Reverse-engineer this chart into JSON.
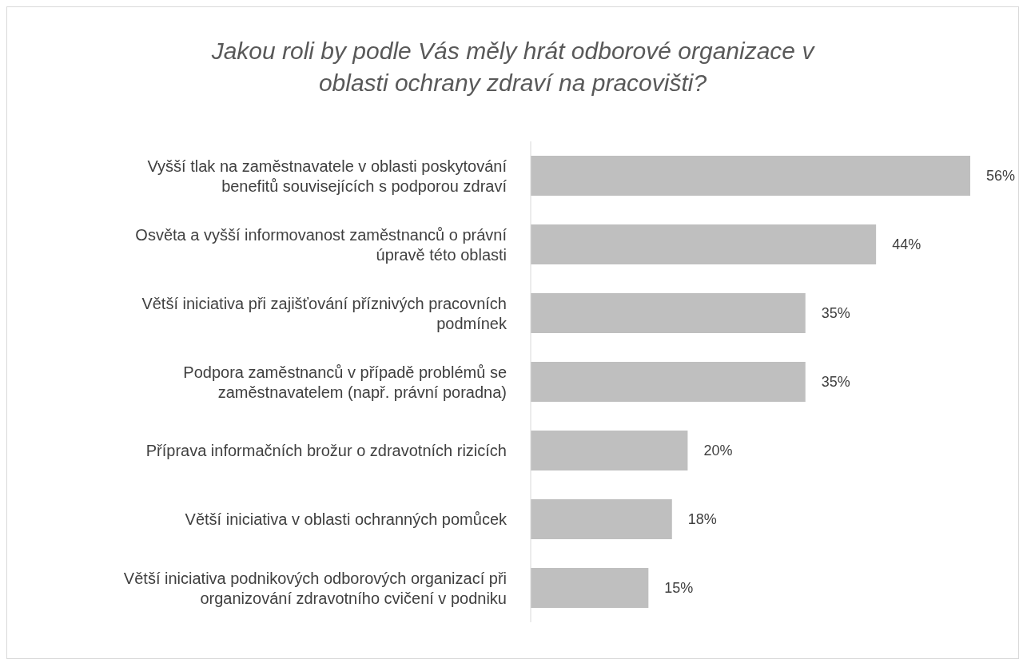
{
  "chart_data": {
    "type": "bar",
    "orientation": "horizontal",
    "title": "Jakou roli by podle Vás měly hrát odborové organizace v oblasti ochrany zdraví na pracovišti?",
    "categories": [
      "Vyšší tlak na zaměstnavatele v oblasti poskytování benefitů souvisejících s podporou zdraví",
      "Osvěta a vyšší informovanost zaměstnanců o právní úpravě této oblasti",
      "Větší iniciativa při zajišťování příznivých pracovních podmínek",
      "Podpora zaměstnanců v případě problémů se zaměstnavatelem (např. právní poradna)",
      "Příprava informačních brožur o zdravotních rizicích",
      "Větší iniciativa v oblasti ochranných pomůcek",
      "Větší iniciativa podnikových odborových organizací při organizování zdravotního cvičení v podniku"
    ],
    "values": [
      56,
      44,
      35,
      35,
      20,
      18,
      15
    ],
    "value_labels": [
      "56%",
      "44%",
      "35%",
      "35%",
      "20%",
      "18%",
      "15%"
    ],
    "color": "#bfbfbf",
    "grid": false,
    "legend": false
  }
}
